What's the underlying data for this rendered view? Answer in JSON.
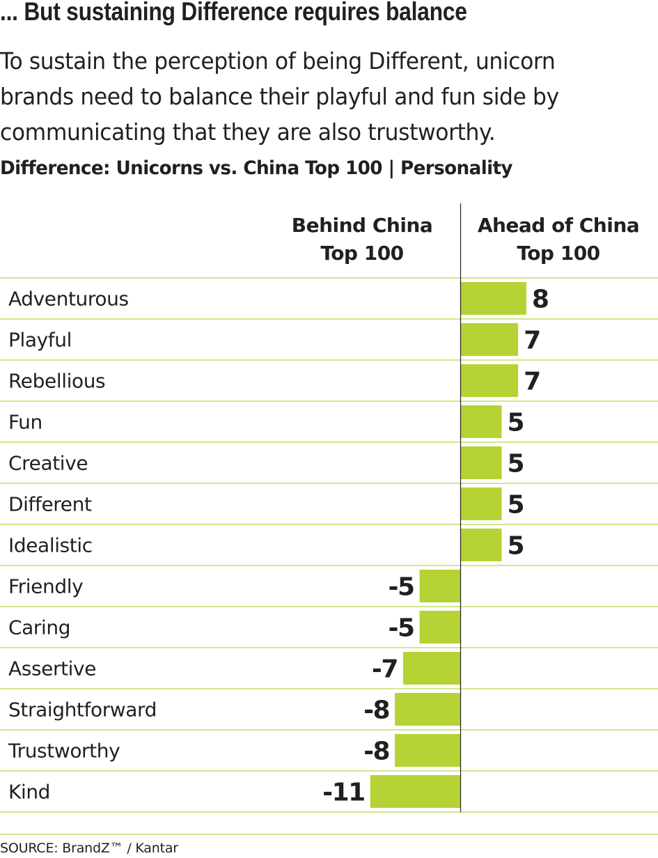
{
  "header": {
    "headline": "... But sustaining Difference requires balance",
    "intro_lines": [
      "To sustain the perception of being Different, unicorn",
      "brands need to balance their playful and fun side by",
      "communicating that they are also trustworthy."
    ],
    "chart_title": "Difference: Unicorns vs. China Top 100 | Personality"
  },
  "colors": {
    "bar": "#b5d334",
    "rule": "#c3dd6a",
    "text": "#231f20"
  },
  "chart_data": {
    "type": "bar",
    "orientation": "horizontal",
    "title": "Difference: Unicorns vs. China Top 100 | Personality",
    "column_headers": {
      "left": [
        "Behind China",
        "Top 100"
      ],
      "right": [
        "Ahead of China",
        "Top 100"
      ]
    },
    "categories": [
      "Adventurous",
      "Playful",
      "Rebellious",
      "Fun",
      "Creative",
      "Different",
      "Idealistic",
      "Friendly",
      "Caring",
      "Assertive",
      "Straightforward",
      "Trustworthy",
      "Kind"
    ],
    "values": [
      8,
      7,
      7,
      5,
      5,
      5,
      5,
      -5,
      -5,
      -7,
      -8,
      -8,
      -11
    ],
    "xlim": [
      -11,
      8
    ],
    "grid": false,
    "legend": "none"
  },
  "footer": {
    "source": "SOURCE: BrandZ™ / Kantar"
  }
}
